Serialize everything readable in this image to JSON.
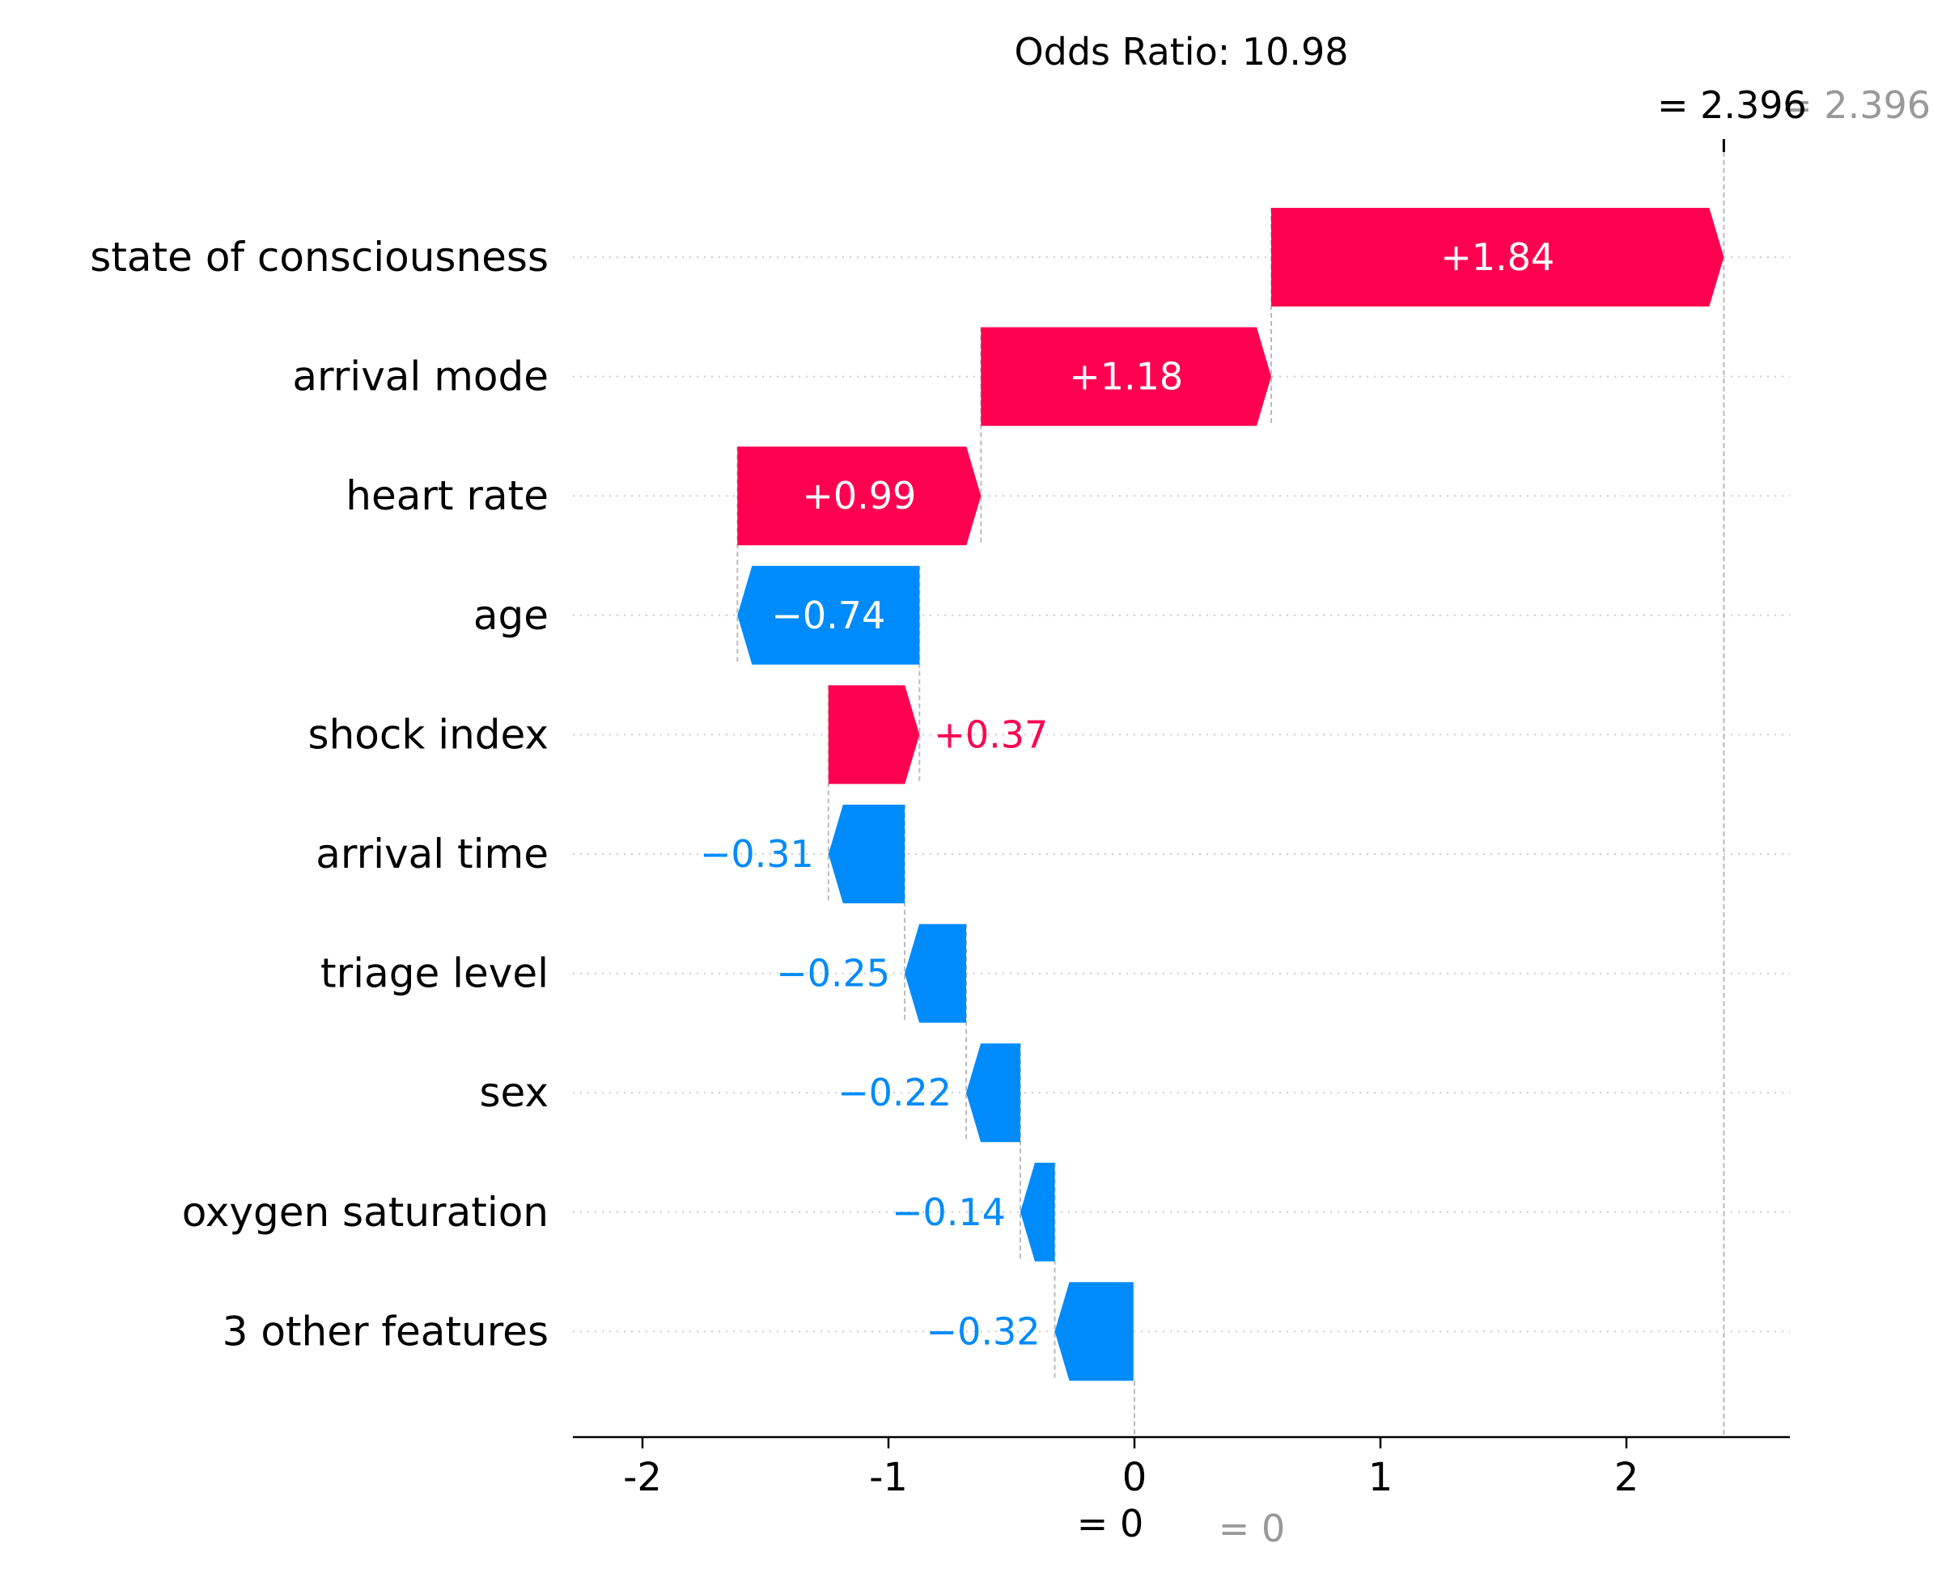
{
  "chart_data": {
    "type": "waterfall",
    "title": "Odds Ratio: 10.98",
    "base_value": 0,
    "final_value": 2.396,
    "base_label": "= 0",
    "base_label_faint": "= 0",
    "final_label": "= 2.396",
    "final_label_faint": "= 2.396",
    "xlim": [
      -2.28,
      2.66
    ],
    "xticks": [
      {
        "value": -2,
        "label": "-2"
      },
      {
        "value": -1,
        "label": "-1"
      },
      {
        "value": 0,
        "label": "0"
      },
      {
        "value": 1,
        "label": "1"
      },
      {
        "value": 2,
        "label": "2"
      }
    ],
    "features": [
      {
        "name": "state of consciousness",
        "value": 1.84,
        "label": "+1.84"
      },
      {
        "name": "arrival mode",
        "value": 1.18,
        "label": "+1.18"
      },
      {
        "name": "heart rate",
        "value": 0.99,
        "label": "+0.99"
      },
      {
        "name": "age",
        "value": -0.74,
        "label": "−0.74"
      },
      {
        "name": "shock index",
        "value": 0.37,
        "label": "+0.37"
      },
      {
        "name": "arrival time",
        "value": -0.31,
        "label": "−0.31"
      },
      {
        "name": "triage level",
        "value": -0.25,
        "label": "−0.25"
      },
      {
        "name": "sex",
        "value": -0.22,
        "label": "−0.22"
      },
      {
        "name": "oxygen saturation",
        "value": -0.14,
        "label": "−0.14"
      },
      {
        "name": "3 other features",
        "value": -0.32,
        "label": "−0.32"
      }
    ],
    "colors": {
      "positive": "#ff0051",
      "negative": "#008bfb",
      "text": "#000000",
      "faint": "#999999",
      "guide": "#bbbbbb"
    }
  }
}
